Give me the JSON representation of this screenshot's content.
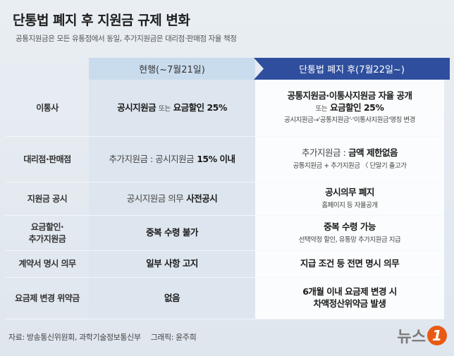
{
  "header": {
    "title": "단통법 폐지 후 지원금 규제 변화",
    "subtitle": "공통지원금은 모든 유통점에서 동일, 추가지원금은 대리점·판매점 자율 책정"
  },
  "table": {
    "columns": [
      "현행(~7월21일)",
      "단통법 폐지 후(7월22일~)"
    ],
    "rows": [
      {
        "label": [
          "이통사"
        ],
        "current": [
          [
            {
              "text": "공시지원금",
              "style": "bold"
            },
            {
              "text": "또는",
              "style": "small"
            },
            {
              "text": "요금할인 25%",
              "style": "bold"
            }
          ]
        ],
        "after": [
          [
            {
              "text": "공통지원금·이통사지원금 자율 공개",
              "style": "bold"
            }
          ],
          [
            {
              "text": "또는",
              "style": "small"
            },
            {
              "text": "요금할인 25%",
              "style": "bold"
            }
          ],
          [
            {
              "text": "공시지원금→'공통지원금'·'이통사지원금'명칭 변경",
              "style": "small"
            }
          ]
        ]
      },
      {
        "label": [
          "대리점·판매점"
        ],
        "current": [
          [
            {
              "text": "추가지원금 : 공시지원금",
              "style": "normal"
            },
            {
              "text": "15% 이내",
              "style": "bold"
            }
          ]
        ],
        "after": [
          [
            {
              "text": "추가지원금 :",
              "style": "normal"
            },
            {
              "text": "금액 제한없음",
              "style": "bold"
            }
          ],
          [
            {
              "text": "공통지원금 + 추가지원금 〈 단말기 출고가",
              "style": "small"
            }
          ]
        ]
      },
      {
        "label": [
          "지원금 공시"
        ],
        "current": [
          [
            {
              "text": "공시지원금 의무",
              "style": "normal"
            },
            {
              "text": "사전공시",
              "style": "bold"
            }
          ]
        ],
        "after": [
          [
            {
              "text": "공시의무 폐지",
              "style": "bold"
            }
          ],
          [
            {
              "text": "홈페이지 등 자율공개",
              "style": "small"
            }
          ]
        ]
      },
      {
        "label": [
          "요금할인·",
          "추가지원금"
        ],
        "current": [
          [
            {
              "text": "중복 수령 불가",
              "style": "bold"
            }
          ]
        ],
        "after": [
          [
            {
              "text": "중복 수령 가능",
              "style": "bold"
            }
          ],
          [
            {
              "text": "선택약정 할인, 유통망 추가지원금 지급",
              "style": "small"
            }
          ]
        ]
      },
      {
        "label": [
          "계약서 명시 의무"
        ],
        "current": [
          [
            {
              "text": "일부 사항 고지",
              "style": "bold"
            }
          ]
        ],
        "after": [
          [
            {
              "text": "지급 조건 등 전면 명시 의무",
              "style": "bold"
            }
          ]
        ]
      },
      {
        "label": [
          "요금제 변경 위약금"
        ],
        "current": [
          [
            {
              "text": "없음",
              "style": "bold"
            }
          ]
        ],
        "after": [
          [
            {
              "text": "6개월 이내 요금제 변경 시",
              "style": "bold"
            }
          ],
          [
            {
              "text": "차액정산위약금 발생",
              "style": "bold"
            }
          ]
        ]
      }
    ]
  },
  "footer": {
    "source": "자료: 방송통신위원회, 과학기술정보통신부",
    "credit": "그래픽: 윤주희",
    "logo": {
      "text": "뉴스",
      "mark": "1"
    }
  }
}
